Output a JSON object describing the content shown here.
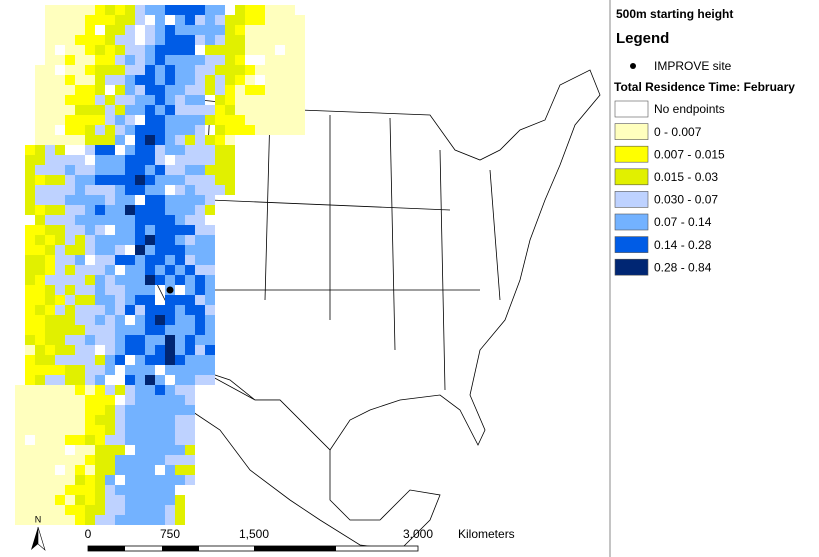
{
  "panel": {
    "title": "500m starting height",
    "legend_title": "Legend",
    "site_label": "IMPROVE site",
    "ramp_title": "Total Residence Time: February",
    "classes": [
      {
        "label": "No endpoints",
        "color": "#ffffff"
      },
      {
        "label": "0 - 0.007",
        "color": "#ffffbe"
      },
      {
        "label": "0.007 - 0.015",
        "color": "#ffff00"
      },
      {
        "label": "0.015 - 0.03",
        "color": "#e1f000"
      },
      {
        "label": "0.030 - 0.07",
        "color": "#bed2ff"
      },
      {
        "label": "0.07 - 0.14",
        "color": "#73b2ff"
      },
      {
        "label": "0.14 - 0.28",
        "color": "#005ce6"
      },
      {
        "label": "0.28 - 0.84",
        "color": "#002673"
      }
    ]
  },
  "scale_bar": {
    "labels": [
      "0",
      "750",
      "1,500",
      "3,000"
    ],
    "unit": "Kilometers",
    "north": "N"
  }
}
